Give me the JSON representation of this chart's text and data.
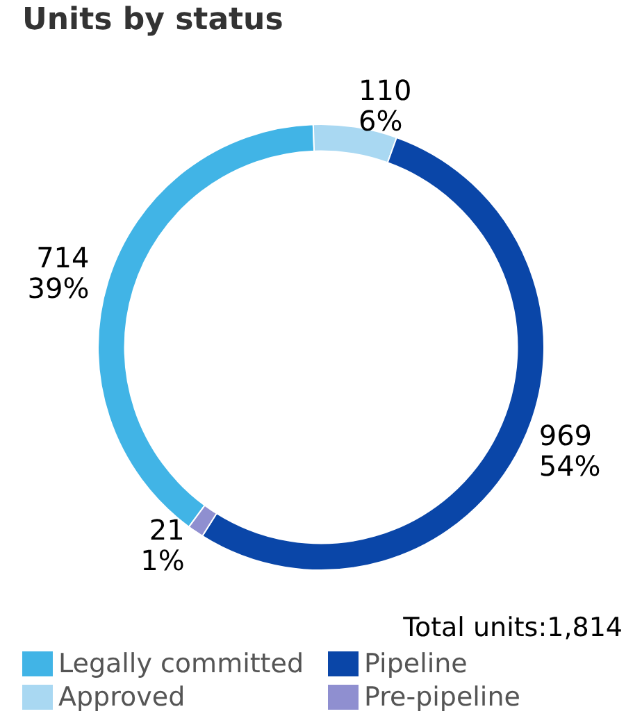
{
  "chart_data": {
    "type": "donut",
    "title": "Units by status",
    "categories": [
      "Legally committed",
      "Approved",
      "Pipeline",
      "Pre-pipeline"
    ],
    "values": [
      714,
      110,
      969,
      21
    ],
    "colors": [
      "#41b4e6",
      "#a9d8f2",
      "#0a46a8",
      "#8f8fd0"
    ],
    "value_labels": [
      "714\n39%",
      "110\n6%",
      "969\n54%",
      "21\n1%"
    ],
    "annotations": [
      "Total units:1,814"
    ],
    "legend": "bottom"
  }
}
